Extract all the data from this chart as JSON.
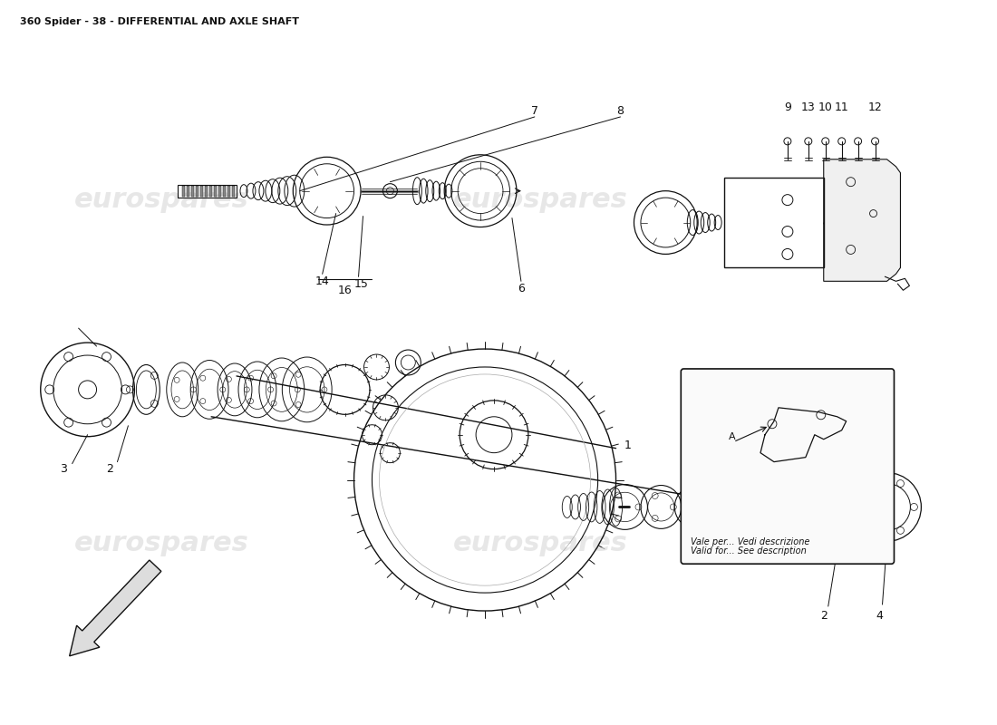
{
  "title": "360 Spider - 38 - DIFFERENTIAL AND AXLE SHAFT",
  "title_fontsize": 8,
  "bg_color": "#ffffff",
  "line_color": "#111111",
  "watermark_color": "#dedede",
  "watermark_text": "eurospares",
  "inset_text1": "Vale per... Vedi descrizione",
  "inset_text2": "Valid for... See description",
  "fig_width": 11.0,
  "fig_height": 8.0,
  "dpi": 100
}
